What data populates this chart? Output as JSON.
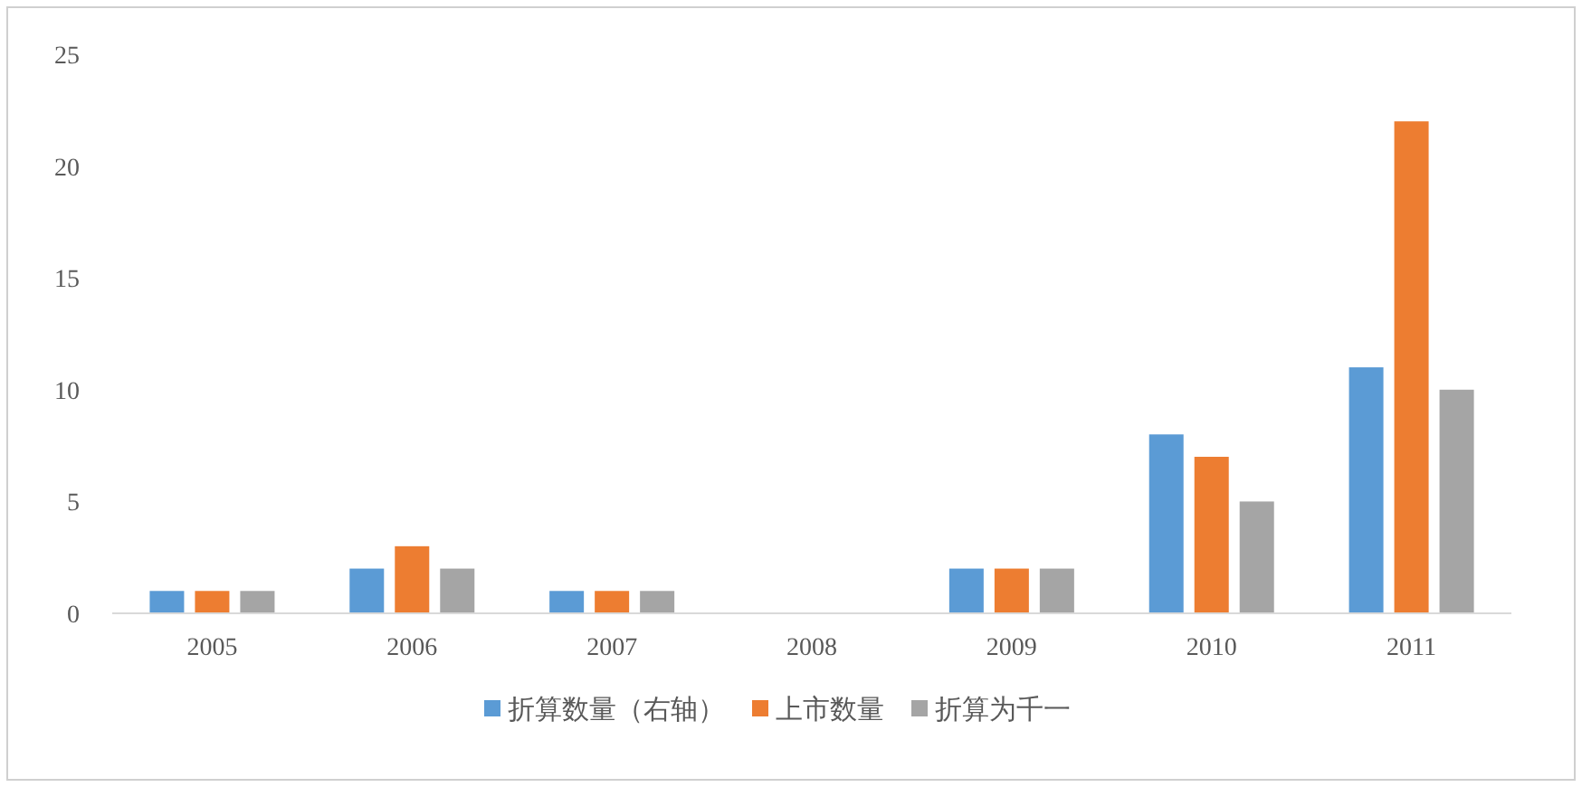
{
  "chart_data": {
    "type": "bar",
    "categories": [
      "2005",
      "2006",
      "2007",
      "2008",
      "2009",
      "2010",
      "2011"
    ],
    "series": [
      {
        "name": "折算数量（右轴）",
        "color": "#5b9bd5",
        "values": [
          1,
          2,
          1,
          0,
          2,
          8,
          11
        ]
      },
      {
        "name": "上市数量",
        "color": "#ed7d31",
        "values": [
          1,
          3,
          1,
          0,
          2,
          7,
          22
        ]
      },
      {
        "name": "折算为千一",
        "color": "#a5a5a5",
        "values": [
          1,
          2,
          1,
          0,
          2,
          5,
          10
        ]
      }
    ],
    "ylim": [
      0,
      25
    ],
    "yticks": [
      0,
      5,
      10,
      15,
      20,
      25
    ],
    "grid": false,
    "legend": "bottom"
  }
}
